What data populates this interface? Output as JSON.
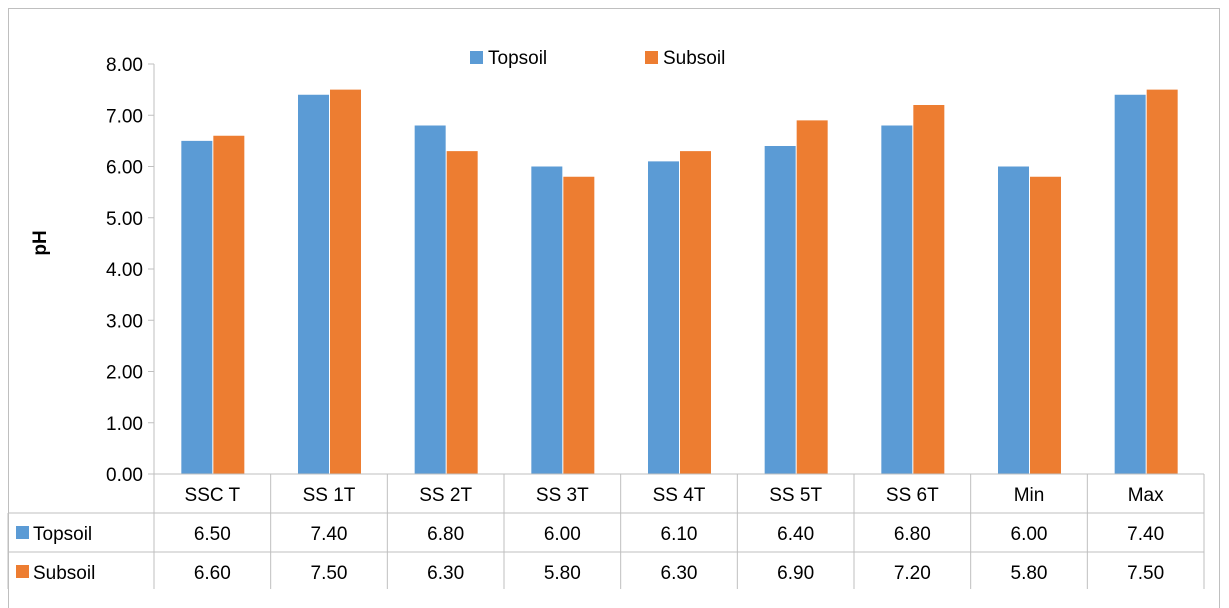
{
  "chart_data": {
    "type": "bar",
    "title": "",
    "xlabel": "",
    "ylabel": "pH",
    "ylim": [
      0,
      8
    ],
    "ytick_step": 1,
    "ytick_labels": [
      "0.00",
      "1.00",
      "2.00",
      "3.00",
      "4.00",
      "5.00",
      "6.00",
      "7.00",
      "8.00"
    ],
    "grid": false,
    "legend_position": "top-center",
    "categories": [
      "SSC T",
      "SS 1T",
      "SS 2T",
      "SS 3T",
      "SS 4T",
      "SS 5T",
      "SS 6T",
      "Min",
      "Max"
    ],
    "series": [
      {
        "name": "Topsoil",
        "color": "#5b9bd5",
        "values": [
          6.5,
          7.4,
          6.8,
          6.0,
          6.1,
          6.4,
          6.8,
          6.0,
          7.4
        ],
        "table_labels": [
          "6.50",
          "7.40",
          "6.80",
          "6.00",
          "6.10",
          "6.40",
          "6.80",
          "6.00",
          "7.40"
        ]
      },
      {
        "name": "Subsoil",
        "color": "#ed7d31",
        "values": [
          6.6,
          7.5,
          6.3,
          5.8,
          6.3,
          6.9,
          7.2,
          5.8,
          7.5
        ],
        "table_labels": [
          "6.60",
          "7.50",
          "6.30",
          "5.80",
          "6.30",
          "6.90",
          "7.20",
          "5.80",
          "7.50"
        ]
      }
    ],
    "data_table": true
  }
}
